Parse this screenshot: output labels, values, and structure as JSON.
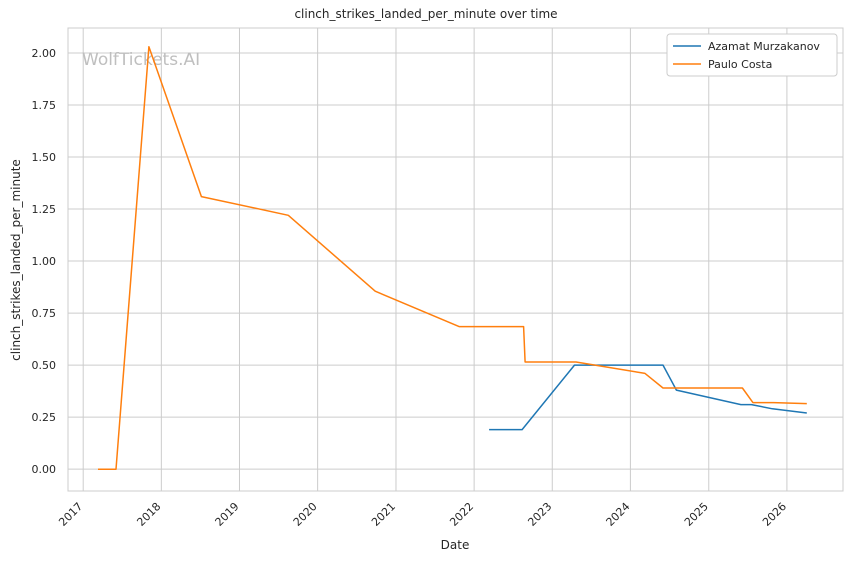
{
  "chart_data": {
    "type": "line",
    "title": "clinch_strikes_landed_per_minute over time",
    "xlabel": "Date",
    "ylabel": "clinch_strikes_landed_per_minute",
    "watermark": "WolfTickets.AI",
    "x_ticks": [
      "2017",
      "2018",
      "2019",
      "2020",
      "2021",
      "2022",
      "2023",
      "2024",
      "2025",
      "2026"
    ],
    "y_ticks": [
      "0.00",
      "0.25",
      "0.50",
      "0.75",
      "1.00",
      "1.25",
      "1.50",
      "1.75",
      "2.00"
    ],
    "xlim": [
      "2016-10-22",
      "2026-09-20"
    ],
    "ylim": [
      -0.105,
      2.12
    ],
    "grid": true,
    "legend_position": "top-right",
    "series": [
      {
        "name": "Azamat Murzakanov",
        "color": "#1f77b4",
        "points": [
          [
            "2022-03-12",
            0.19
          ],
          [
            "2022-08-13",
            0.19
          ],
          [
            "2023-04-15",
            0.5
          ],
          [
            "2024-06-01",
            0.5
          ],
          [
            "2024-08-03",
            0.38
          ],
          [
            "2025-05-31",
            0.31
          ],
          [
            "2025-07-19",
            0.31
          ],
          [
            "2025-10-25",
            0.29
          ],
          [
            "2026-04-04",
            0.27
          ]
        ]
      },
      {
        "name": "Paulo Costa",
        "color": "#ff7f0e",
        "points": [
          [
            "2017-03-11",
            0.0
          ],
          [
            "2017-06-03",
            0.0
          ],
          [
            "2017-11-04",
            2.03
          ],
          [
            "2018-07-07",
            1.31
          ],
          [
            "2019-08-17",
            1.22
          ],
          [
            "2020-09-26",
            0.855
          ],
          [
            "2021-10-23",
            0.685
          ],
          [
            "2022-08-20",
            0.685
          ],
          [
            "2022-08-27",
            0.515
          ],
          [
            "2023-04-22",
            0.515
          ],
          [
            "2024-03-09",
            0.46
          ],
          [
            "2024-06-01",
            0.39
          ],
          [
            "2025-06-07",
            0.39
          ],
          [
            "2025-07-26",
            0.32
          ],
          [
            "2025-11-01",
            0.32
          ],
          [
            "2026-04-04",
            0.315
          ]
        ]
      }
    ]
  }
}
